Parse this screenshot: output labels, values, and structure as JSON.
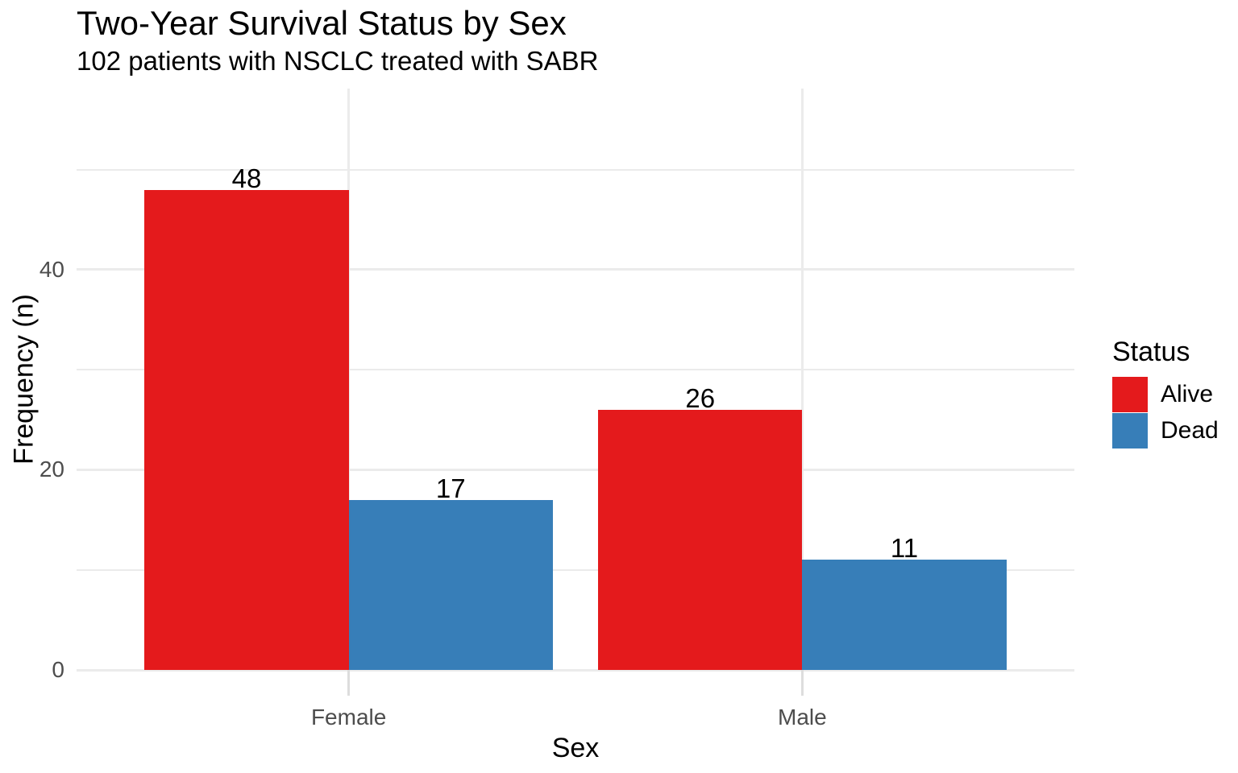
{
  "chart_data": {
    "type": "bar",
    "title": "Two-Year Survival Status by Sex",
    "subtitle": "102 patients with NSCLC treated with SABR",
    "xlabel": "Sex",
    "ylabel": "Frequency (n)",
    "categories": [
      "Female",
      "Male"
    ],
    "series": [
      {
        "name": "Alive",
        "color": "#E41A1C",
        "values": [
          48,
          26
        ]
      },
      {
        "name": "Dead",
        "color": "#377EB8",
        "values": [
          17,
          11
        ]
      }
    ],
    "bar_value_labels": true,
    "legend": {
      "title": "Status",
      "position": "right",
      "entries": [
        "Alive",
        "Dead"
      ]
    },
    "y_axis": {
      "ticks_major": [
        0,
        20,
        40
      ],
      "ticks_minor": [
        10,
        30,
        50
      ],
      "ylim": [
        0,
        58.1
      ]
    },
    "grid": true,
    "colors": {
      "grid": "#EBEBEB",
      "axis_text": "#4D4D4D",
      "tick_mark": "#DDDDDD",
      "text": "#000000",
      "background": "#FFFFFF"
    }
  }
}
